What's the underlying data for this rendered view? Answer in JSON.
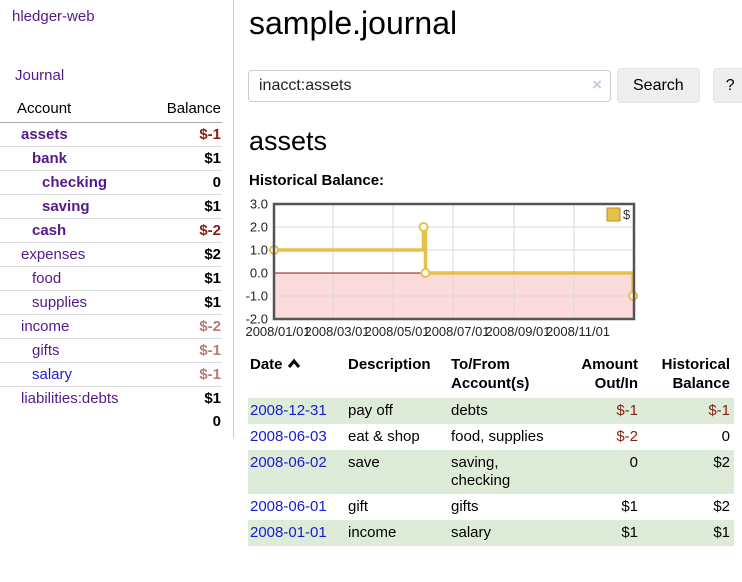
{
  "app": {
    "brand": "hledger-web",
    "nav": {
      "journal": "Journal"
    }
  },
  "sidebar": {
    "header": {
      "account": "Account",
      "balance": "Balance"
    },
    "accounts": [
      {
        "name": "assets",
        "balance": "$-1",
        "depth": 1,
        "bold": true,
        "balance_style": "neg-strong",
        "link_style": "visited"
      },
      {
        "name": "bank",
        "balance": "$1",
        "depth": 2,
        "bold": true,
        "balance_style": "pos",
        "link_style": "visited"
      },
      {
        "name": "checking",
        "balance": "0",
        "depth": 3,
        "bold": true,
        "balance_style": "pos",
        "link_style": "visited"
      },
      {
        "name": "saving",
        "balance": "$1",
        "depth": 3,
        "bold": true,
        "balance_style": "pos",
        "link_style": "visited"
      },
      {
        "name": "cash",
        "balance": "$-2",
        "depth": 2,
        "bold": true,
        "balance_style": "neg-strong",
        "link_style": "visited"
      },
      {
        "name": "expenses",
        "balance": "$2",
        "depth": 1,
        "bold": false,
        "balance_style": "pos",
        "link_style": "visited"
      },
      {
        "name": "food",
        "balance": "$1",
        "depth": 2,
        "bold": false,
        "balance_style": "pos",
        "link_style": "visited"
      },
      {
        "name": "supplies",
        "balance": "$1",
        "depth": 2,
        "bold": false,
        "balance_style": "pos",
        "link_style": "visited"
      },
      {
        "name": "income",
        "balance": "$-2",
        "depth": 1,
        "bold": false,
        "balance_style": "neg-soft",
        "link_style": "visited"
      },
      {
        "name": "gifts",
        "balance": "$-1",
        "depth": 2,
        "bold": false,
        "balance_style": "neg-soft",
        "link_style": "visited"
      },
      {
        "name": "salary",
        "balance": "$-1",
        "depth": 2,
        "bold": false,
        "balance_style": "neg-soft",
        "link_style": "unvisited"
      },
      {
        "name": "liabilities:debts",
        "balance": "$1",
        "depth": 1,
        "bold": false,
        "balance_style": "pos",
        "link_style": "visited"
      }
    ],
    "total": "0"
  },
  "main": {
    "title": "sample.journal",
    "search": {
      "query": "inacct:assets",
      "clear_icon": "×",
      "search_button": "Search",
      "help_button": "?"
    },
    "account_heading": "assets",
    "chart_heading": "Historical Balance:"
  },
  "chart_data": {
    "type": "line",
    "step": true,
    "title": "Historical Balance",
    "ylim": [
      -2,
      3
    ],
    "yticks": [
      {
        "label": "3.0",
        "value": 3
      },
      {
        "label": "2.0",
        "value": 2
      },
      {
        "label": "1.0",
        "value": 1
      },
      {
        "label": "0.0",
        "value": 0
      },
      {
        "label": "-1.0",
        "value": -1
      },
      {
        "label": "-2.0",
        "value": -2
      }
    ],
    "xticks": [
      {
        "label": "2008/01/01",
        "day": 0
      },
      {
        "label": "2008/03/01",
        "day": 60
      },
      {
        "label": "2008/05/01",
        "day": 121
      },
      {
        "label": "2008/07/01",
        "day": 182
      },
      {
        "label": "2008/09/01",
        "day": 244
      },
      {
        "label": "2008/11/01",
        "day": 305
      }
    ],
    "x_total_days": 366,
    "series": [
      {
        "name": "$",
        "color": "#e7c04a",
        "points": [
          {
            "date": "2008/01/01",
            "day": 0,
            "value": 1
          },
          {
            "date": "2008/06/01",
            "day": 152,
            "value": 2
          },
          {
            "date": "2008/06/03",
            "day": 154,
            "value": 0
          },
          {
            "date": "2008/12/31",
            "day": 365,
            "value": -1
          }
        ]
      }
    ],
    "negative_region_fill": "#fbdbdb",
    "zero_line_color": "#8b1a10",
    "grid_color": "#d9d9d9",
    "border_color": "#555555",
    "legend": {
      "label": "$",
      "fill": "#e7c04a",
      "border": "#b5912f",
      "position": "top-right"
    },
    "marker": {
      "fill": "#ffffff",
      "radius": 4
    }
  },
  "register": {
    "columns": [
      {
        "lines": [
          "Date",
          ""
        ],
        "sorted": "asc"
      },
      {
        "lines": [
          "Description",
          ""
        ]
      },
      {
        "lines": [
          "To/From",
          "Account(s)"
        ]
      },
      {
        "lines": [
          "Amount",
          "Out/In"
        ],
        "align": "right"
      },
      {
        "lines": [
          "Historical",
          "Balance"
        ],
        "align": "right"
      }
    ],
    "rows": [
      {
        "date": "2008-12-31",
        "description": "pay off",
        "accounts": "debts",
        "amount": "$-1",
        "amount_negative": true,
        "balance": "$-1",
        "balance_negative": true
      },
      {
        "date": "2008-06-03",
        "description": "eat & shop",
        "accounts": "food, supplies",
        "amount": "$-2",
        "amount_negative": true,
        "balance": "0",
        "balance_negative": false
      },
      {
        "date": "2008-06-02",
        "description": "save",
        "accounts": "saving, checking",
        "amount": "0",
        "amount_negative": false,
        "balance": "$2",
        "balance_negative": false
      },
      {
        "date": "2008-06-01",
        "description": "gift",
        "accounts": "gifts",
        "amount": "$1",
        "amount_negative": false,
        "balance": "$2",
        "balance_negative": false
      },
      {
        "date": "2008-01-01",
        "description": "income",
        "accounts": "salary",
        "amount": "$1",
        "amount_negative": false,
        "balance": "$1",
        "balance_negative": false
      }
    ]
  },
  "colors": {
    "link_purple": "#551a8b",
    "link_blue": "#1a1ace",
    "negative_strong": "#8c1b13",
    "negative_soft": "#ba7a72",
    "row_stripe": "#ddecd9",
    "chart_line": "#e7c04a"
  }
}
